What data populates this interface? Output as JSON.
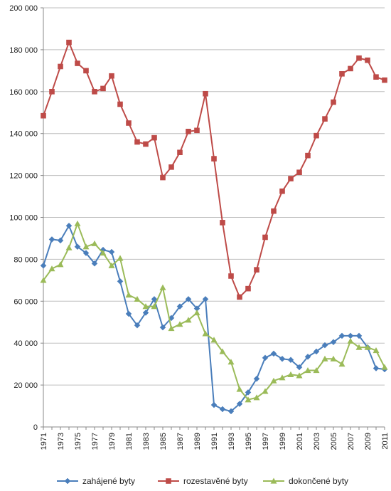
{
  "chart_data": {
    "type": "line",
    "title": "",
    "xlabel": "",
    "ylabel": "",
    "x": [
      1971,
      1972,
      1973,
      1974,
      1975,
      1976,
      1977,
      1978,
      1979,
      1980,
      1981,
      1982,
      1983,
      1984,
      1985,
      1986,
      1987,
      1988,
      1989,
      1990,
      1991,
      1992,
      1993,
      1994,
      1995,
      1996,
      1997,
      1998,
      1999,
      2000,
      2001,
      2002,
      2003,
      2004,
      2005,
      2006,
      2007,
      2008,
      2009,
      2010,
      2011
    ],
    "x_tick_labels": [
      "1971",
      "1973",
      "1975",
      "1977",
      "1979",
      "1981",
      "1983",
      "1985",
      "1987",
      "1989",
      "1991",
      "1993",
      "1995",
      "1997",
      "1999",
      "2001",
      "2003",
      "2005",
      "2007",
      "2009",
      "2011"
    ],
    "y_tick_labels": [
      "0",
      "20 000",
      "40 000",
      "60 000",
      "80 000",
      "100 000",
      "120 000",
      "140 000",
      "160 000",
      "180 000",
      "200 000"
    ],
    "ylim": [
      0,
      200000
    ],
    "grid": true,
    "legend_position": "bottom",
    "series": [
      {
        "name": "zahájené byty",
        "color": "#4a7ebb",
        "marker": "diamond",
        "values": [
          77000,
          89500,
          89000,
          96000,
          86000,
          83000,
          78000,
          84500,
          83500,
          69500,
          54000,
          48500,
          54500,
          61000,
          47500,
          52000,
          57500,
          61000,
          56500,
          61000,
          10500,
          8500,
          7500,
          11000,
          16500,
          23000,
          33000,
          35000,
          32500,
          32000,
          28500,
          33500,
          36000,
          39000,
          40500,
          43500,
          43500,
          43500,
          38000,
          28000,
          27500
        ]
      },
      {
        "name": "rozestavěné byty",
        "color": "#be4b48",
        "marker": "square",
        "values": [
          148500,
          160000,
          172000,
          183500,
          173500,
          170000,
          160000,
          161500,
          167500,
          154000,
          145000,
          136000,
          135000,
          138000,
          119000,
          124000,
          131000,
          141000,
          141500,
          159000,
          128000,
          97500,
          72000,
          62000,
          66000,
          75000,
          90500,
          103000,
          112500,
          118500,
          121500,
          129500,
          139000,
          147000,
          155000,
          168500,
          171000,
          176000,
          175000,
          167000,
          165500
        ]
      },
      {
        "name": "dokončené byty",
        "color": "#9bbb59",
        "marker": "triangle",
        "values": [
          70000,
          75500,
          77500,
          85500,
          97000,
          86000,
          87500,
          83000,
          77000,
          80500,
          63000,
          61000,
          57500,
          57500,
          66500,
          47000,
          49000,
          51000,
          54500,
          44500,
          41500,
          36000,
          31000,
          18000,
          13000,
          14000,
          17000,
          22000,
          23500,
          25000,
          24500,
          27000,
          27000,
          32500,
          32500,
          30000,
          41000,
          38000,
          38000,
          36500,
          28500
        ]
      }
    ]
  }
}
